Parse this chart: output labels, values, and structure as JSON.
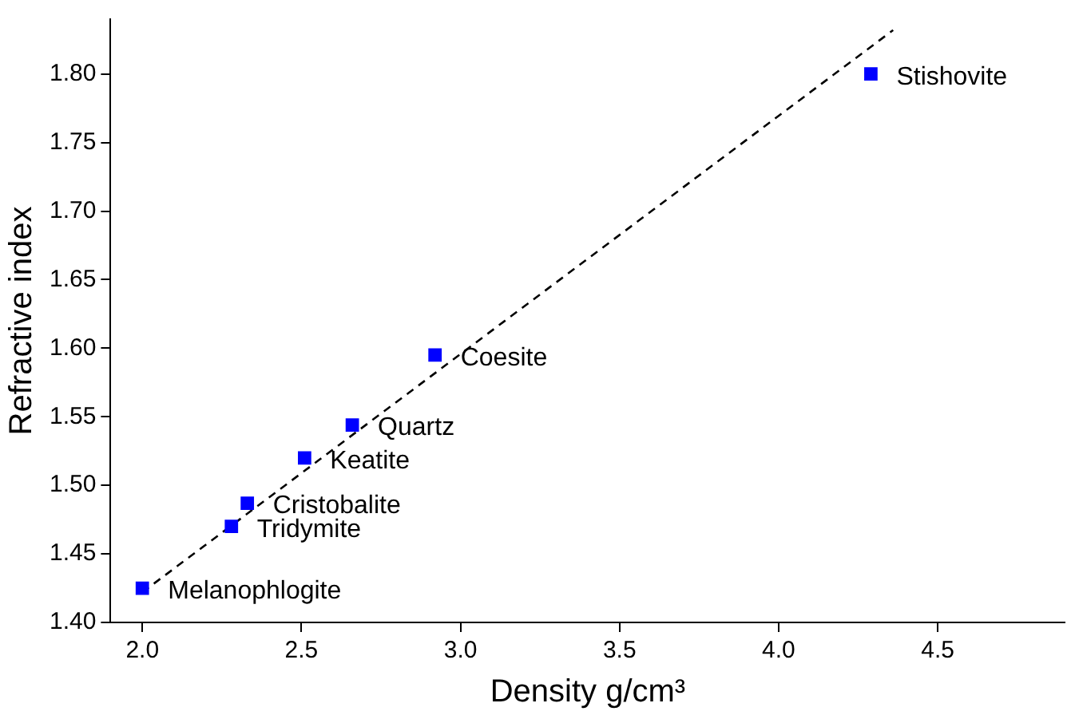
{
  "chart_data": {
    "type": "scatter",
    "xlabel": "Density g/cm³",
    "ylabel": "Refractive index",
    "xlim": [
      1.9,
      4.9
    ],
    "ylim": [
      1.4,
      1.84
    ],
    "xticks": [
      {
        "value": 2,
        "label": "2.0"
      },
      {
        "value": 2.5,
        "label": "2.5"
      },
      {
        "value": 3,
        "label": "3.0"
      },
      {
        "value": 3.5,
        "label": "3.5"
      },
      {
        "value": 4,
        "label": "4.0"
      },
      {
        "value": 4.5,
        "label": "4.5"
      }
    ],
    "yticks": [
      {
        "value": 1.4,
        "label": "1.40"
      },
      {
        "value": 1.45,
        "label": "1.45"
      },
      {
        "value": 1.5,
        "label": "1.50"
      },
      {
        "value": 1.55,
        "label": "1.55"
      },
      {
        "value": 1.6,
        "label": "1.60"
      },
      {
        "value": 1.65,
        "label": "1.65"
      },
      {
        "value": 1.7,
        "label": "1.70"
      },
      {
        "value": 1.75,
        "label": "1.75"
      },
      {
        "value": 1.8,
        "label": "1.80"
      }
    ],
    "grid": false,
    "legend": false,
    "marker": "square",
    "series": [
      {
        "type": "scatter",
        "color": "#0000ff",
        "x": [
          2.0,
          2.28,
          2.33,
          2.51,
          2.66,
          2.92,
          4.29
        ],
        "values": [
          1.425,
          1.47,
          1.487,
          1.52,
          1.544,
          1.595,
          1.8
        ]
      },
      {
        "type": "line",
        "color": "#000000",
        "line_style": "dashed",
        "marker": "none",
        "x": [
          2.0,
          4.36
        ],
        "values": [
          1.422,
          1.832
        ]
      }
    ],
    "annotations": [
      {
        "text": "Melanophlogite",
        "x": 2.0,
        "y": 1.425
      },
      {
        "text": "Tridymite",
        "x": 2.28,
        "y": 1.47
      },
      {
        "text": "Cristobalite",
        "x": 2.33,
        "y": 1.487
      },
      {
        "text": "Keatite",
        "x": 2.51,
        "y": 1.52
      },
      {
        "text": "Quartz",
        "x": 2.66,
        "y": 1.544
      },
      {
        "text": "Coesite",
        "x": 2.92,
        "y": 1.595
      },
      {
        "text": "Stishovite",
        "x": 4.29,
        "y": 1.8
      }
    ]
  }
}
